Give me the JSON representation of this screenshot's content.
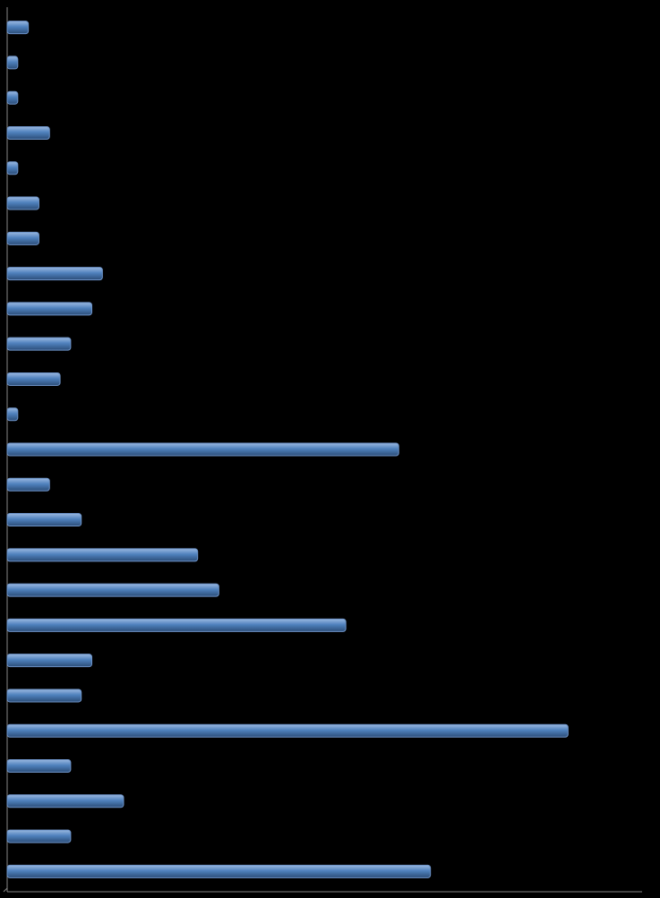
{
  "chart_data": {
    "type": "hbar",
    "categories": [
      null,
      null,
      null,
      null,
      null,
      null,
      null,
      null,
      null,
      null,
      null,
      null,
      null,
      null,
      null,
      null,
      null,
      null,
      null,
      null,
      null,
      null,
      null,
      null,
      null
    ],
    "values": [
      2,
      1,
      1,
      4,
      1,
      3,
      3,
      9,
      8,
      6,
      5,
      1,
      37,
      4,
      7,
      18,
      20,
      32,
      8,
      7,
      53,
      6,
      11,
      6,
      40
    ],
    "color": "#4f81bd",
    "xlim": [
      0,
      60
    ]
  }
}
